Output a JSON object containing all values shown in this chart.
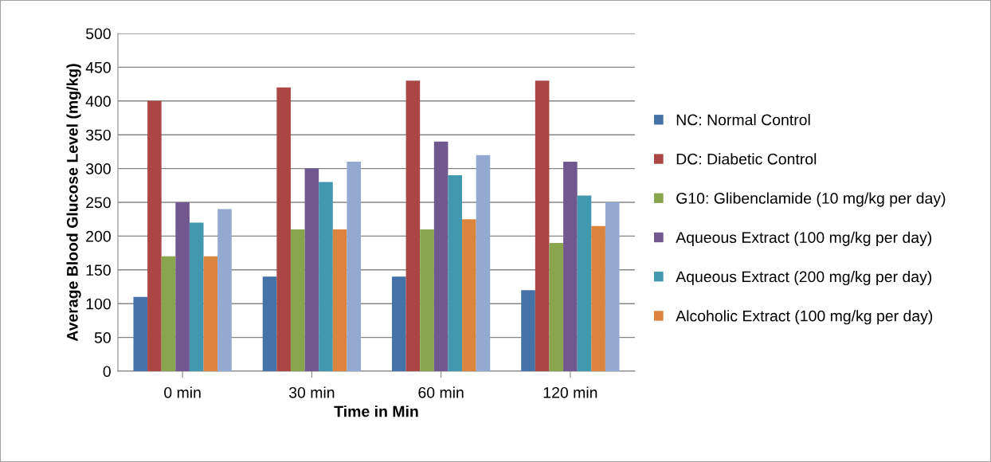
{
  "chart_data": {
    "type": "bar",
    "xlabel": "Time in Min",
    "ylabel": "Average Blood Glucose Level (mg/kg)",
    "categories": [
      "0 min",
      "30 min",
      "60 min",
      "120 min"
    ],
    "series": [
      {
        "name": "NC: Normal Control",
        "color": "#4572a7",
        "values": [
          110,
          140,
          140,
          120
        ]
      },
      {
        "name": "DC: Diabetic Control",
        "color": "#aa4643",
        "values": [
          400,
          420,
          430,
          430
        ]
      },
      {
        "name": "G10: Glibenclamide (10 mg/kg per day)",
        "color": "#89a54e",
        "values": [
          170,
          210,
          210,
          190
        ]
      },
      {
        "name": "Aqueous Extract (100 mg/kg per day)",
        "color": "#71588f",
        "values": [
          250,
          300,
          340,
          310
        ]
      },
      {
        "name": "Aqueous Extract (200 mg/kg per day)",
        "color": "#4198af",
        "values": [
          220,
          280,
          290,
          260
        ]
      },
      {
        "name": "Alcoholic Extract (100 mg/kg per day)",
        "color": "#db843d",
        "values": [
          170,
          210,
          225,
          215
        ]
      },
      {
        "color": "#93a9cf",
        "values": [
          240,
          310,
          320,
          250
        ]
      }
    ],
    "ylim": [
      0,
      500
    ],
    "yticks": [
      0,
      50,
      100,
      150,
      200,
      250,
      300,
      350,
      400,
      450,
      500
    ],
    "grid": "y",
    "legend": "right"
  }
}
